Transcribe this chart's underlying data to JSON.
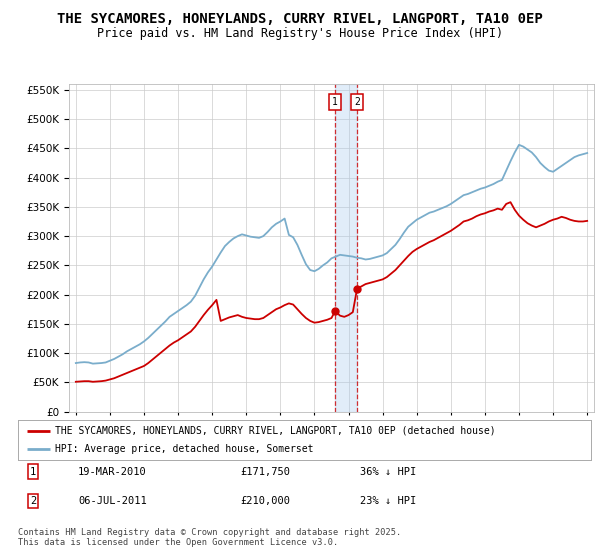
{
  "title": "THE SYCAMORES, HONEYLANDS, CURRY RIVEL, LANGPORT, TA10 0EP",
  "subtitle": "Price paid vs. HM Land Registry's House Price Index (HPI)",
  "title_fontsize": 10,
  "subtitle_fontsize": 8.5,
  "background_color": "#ffffff",
  "plot_bg_color": "#ffffff",
  "grid_color": "#cccccc",
  "ylim": [
    0,
    560000
  ],
  "yticks": [
    0,
    50000,
    100000,
    150000,
    200000,
    250000,
    300000,
    350000,
    400000,
    450000,
    500000,
    550000
  ],
  "legend1_label": "THE SYCAMORES, HONEYLANDS, CURRY RIVEL, LANGPORT, TA10 0EP (detached house)",
  "legend2_label": "HPI: Average price, detached house, Somerset",
  "red_line_color": "#cc0000",
  "blue_line_color": "#7aadcb",
  "vline1_color": "#aaccee",
  "vline2_color": "#cc0000",
  "annotation1_label": "1",
  "annotation1_date": "19-MAR-2010",
  "annotation1_price": "£171,750",
  "annotation1_hpi": "36% ↓ HPI",
  "annotation2_label": "2",
  "annotation2_date": "06-JUL-2011",
  "annotation2_price": "£210,000",
  "annotation2_hpi": "23% ↓ HPI",
  "footnote": "Contains HM Land Registry data © Crown copyright and database right 2025.\nThis data is licensed under the Open Government Licence v3.0.",
  "hpi_years": [
    1995,
    1995.25,
    1995.5,
    1995.75,
    1996,
    1996.25,
    1996.5,
    1996.75,
    1997,
    1997.25,
    1997.5,
    1997.75,
    1998,
    1998.25,
    1998.5,
    1998.75,
    1999,
    1999.25,
    1999.5,
    1999.75,
    2000,
    2000.25,
    2000.5,
    2000.75,
    2001,
    2001.25,
    2001.5,
    2001.75,
    2002,
    2002.25,
    2002.5,
    2002.75,
    2003,
    2003.25,
    2003.5,
    2003.75,
    2004,
    2004.25,
    2004.5,
    2004.75,
    2005,
    2005.25,
    2005.5,
    2005.75,
    2006,
    2006.25,
    2006.5,
    2006.75,
    2007,
    2007.25,
    2007.5,
    2007.75,
    2008,
    2008.25,
    2008.5,
    2008.75,
    2009,
    2009.25,
    2009.5,
    2009.75,
    2010,
    2010.25,
    2010.5,
    2010.75,
    2011,
    2011.25,
    2011.5,
    2011.75,
    2012,
    2012.25,
    2012.5,
    2012.75,
    2013,
    2013.25,
    2013.5,
    2013.75,
    2014,
    2014.25,
    2014.5,
    2014.75,
    2015,
    2015.25,
    2015.5,
    2015.75,
    2016,
    2016.25,
    2016.5,
    2016.75,
    2017,
    2017.25,
    2017.5,
    2017.75,
    2018,
    2018.25,
    2018.5,
    2018.75,
    2019,
    2019.25,
    2019.5,
    2019.75,
    2020,
    2020.25,
    2020.5,
    2020.75,
    2021,
    2021.25,
    2021.5,
    2021.75,
    2022,
    2022.25,
    2022.5,
    2022.75,
    2023,
    2023.25,
    2023.5,
    2023.75,
    2024,
    2024.25,
    2024.5,
    2024.75,
    2025
  ],
  "hpi_values": [
    83000,
    84000,
    84500,
    84000,
    82000,
    82500,
    83000,
    84000,
    87000,
    90000,
    94000,
    98000,
    103000,
    107000,
    111000,
    115000,
    120000,
    126000,
    133000,
    140000,
    147000,
    154000,
    162000,
    167000,
    172000,
    177000,
    182000,
    188000,
    198000,
    212000,
    226000,
    238000,
    248000,
    260000,
    272000,
    283000,
    290000,
    296000,
    300000,
    303000,
    301000,
    299000,
    298000,
    297000,
    300000,
    307000,
    315000,
    321000,
    325000,
    330000,
    302000,
    298000,
    285000,
    268000,
    252000,
    242000,
    240000,
    244000,
    250000,
    255000,
    262000,
    265000,
    268000,
    267000,
    266000,
    265000,
    263000,
    262000,
    260000,
    261000,
    263000,
    265000,
    267000,
    271000,
    278000,
    285000,
    295000,
    306000,
    316000,
    322000,
    328000,
    332000,
    336000,
    340000,
    342000,
    345000,
    348000,
    351000,
    355000,
    360000,
    365000,
    370000,
    372000,
    375000,
    378000,
    381000,
    383000,
    386000,
    389000,
    393000,
    396000,
    412000,
    428000,
    443000,
    456000,
    453000,
    448000,
    443000,
    435000,
    425000,
    418000,
    412000,
    410000,
    415000,
    420000,
    425000,
    430000,
    435000,
    438000,
    440000,
    442000
  ],
  "red_years": [
    1995,
    1995.25,
    1995.5,
    1995.75,
    1996,
    1996.25,
    1996.5,
    1996.75,
    1997,
    1997.25,
    1997.5,
    1997.75,
    1998,
    1998.25,
    1998.5,
    1998.75,
    1999,
    1999.25,
    1999.5,
    1999.75,
    2000,
    2000.25,
    2000.5,
    2000.75,
    2001,
    2001.25,
    2001.5,
    2001.75,
    2002,
    2002.25,
    2002.5,
    2002.75,
    2003,
    2003.25,
    2003.5,
    2003.75,
    2004,
    2004.25,
    2004.5,
    2004.75,
    2005,
    2005.25,
    2005.5,
    2005.75,
    2006,
    2006.25,
    2006.5,
    2006.75,
    2007,
    2007.25,
    2007.5,
    2007.75,
    2008,
    2008.25,
    2008.5,
    2008.75,
    2009,
    2009.25,
    2009.5,
    2009.75,
    2010,
    2010.21,
    2010.5,
    2010.75,
    2011,
    2011.25,
    2011.5,
    2011.75,
    2012,
    2012.25,
    2012.5,
    2012.75,
    2013,
    2013.25,
    2013.5,
    2013.75,
    2014,
    2014.25,
    2014.5,
    2014.75,
    2015,
    2015.25,
    2015.5,
    2015.75,
    2016,
    2016.25,
    2016.5,
    2016.75,
    2017,
    2017.25,
    2017.5,
    2017.75,
    2018,
    2018.25,
    2018.5,
    2018.75,
    2019,
    2019.25,
    2019.5,
    2019.75,
    2020,
    2020.25,
    2020.5,
    2020.75,
    2021,
    2021.25,
    2021.5,
    2021.75,
    2022,
    2022.25,
    2022.5,
    2022.75,
    2023,
    2023.25,
    2023.5,
    2023.75,
    2024,
    2024.25,
    2024.5,
    2024.75,
    2025
  ],
  "red_values": [
    51000,
    51500,
    52000,
    52000,
    51000,
    51500,
    52000,
    53000,
    55000,
    57000,
    60000,
    63000,
    66000,
    69000,
    72000,
    75000,
    78000,
    83000,
    89000,
    95000,
    101000,
    107000,
    113000,
    118000,
    122000,
    127000,
    132000,
    137000,
    145000,
    155000,
    165000,
    174000,
    182000,
    191000,
    155000,
    158000,
    161000,
    163000,
    165000,
    162000,
    160000,
    159000,
    158000,
    158000,
    160000,
    165000,
    170000,
    175000,
    178000,
    182000,
    185000,
    183000,
    175000,
    167000,
    160000,
    155000,
    152000,
    153000,
    155000,
    157000,
    160000,
    171750,
    164000,
    162000,
    165000,
    170000,
    210000,
    214000,
    218000,
    220000,
    222000,
    224000,
    226000,
    230000,
    236000,
    242000,
    250000,
    258000,
    266000,
    273000,
    278000,
    282000,
    286000,
    290000,
    293000,
    297000,
    301000,
    305000,
    309000,
    314000,
    319000,
    325000,
    327000,
    330000,
    334000,
    337000,
    339000,
    342000,
    344000,
    347000,
    345000,
    355000,
    358000,
    345000,
    335000,
    328000,
    322000,
    318000,
    315000,
    318000,
    321000,
    325000,
    328000,
    330000,
    333000,
    331000,
    328000,
    326000,
    325000,
    325000,
    326000
  ],
  "sale_years": [
    2010.21,
    2011.5
  ],
  "sale_prices": [
    171750,
    210000
  ],
  "vline_x1": 2010.21,
  "vline_x2": 2011.5,
  "xtick_years": [
    1995,
    1997,
    1999,
    2001,
    2003,
    2005,
    2007,
    2009,
    2011,
    2013,
    2015,
    2017,
    2019,
    2021,
    2023,
    2025
  ]
}
